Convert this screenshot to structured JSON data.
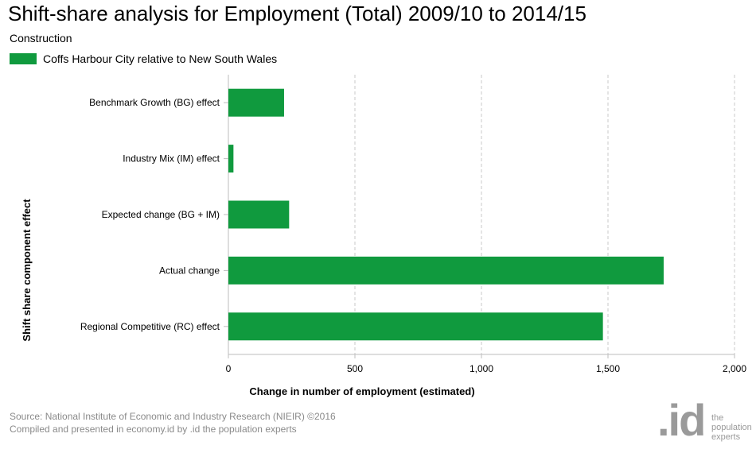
{
  "title": "Shift-share analysis for Employment (Total) 2009/10 to 2014/15",
  "subtitle": "Construction",
  "colors": {
    "bar": "#109a3e",
    "grid": "#c8c8c8",
    "axis": "#bdbdbd"
  },
  "chart_data": {
    "type": "bar",
    "orientation": "horizontal",
    "categories": [
      "Benchmark Growth (BG) effect",
      "Industry Mix (IM) effect",
      "Expected change (BG + IM)",
      "Actual change",
      "Regional Competitive (RC) effect"
    ],
    "series": [
      {
        "name": "Coffs Harbour City relative to New South Wales",
        "values": [
          220,
          20,
          240,
          1720,
          1480
        ]
      }
    ],
    "xlabel": "Change in number of employment (estimated)",
    "ylabel": "Shift share component effect",
    "xlim": [
      0,
      2000
    ],
    "ticks": [
      0,
      500,
      1000,
      1500,
      2000
    ],
    "tick_labels": [
      "0",
      "500",
      "1,000",
      "1,500",
      "2,000"
    ],
    "grid": true,
    "legend_position": "top-left"
  },
  "footer": {
    "source_line1": "Source: National Institute of Economic and Industry Research (NIEIR) ©2016",
    "source_line2": "Compiled and presented in economy.id by .id the population experts"
  },
  "logo": {
    "mark": ".id",
    "line1": "the",
    "line2": "population",
    "line3": "experts"
  }
}
